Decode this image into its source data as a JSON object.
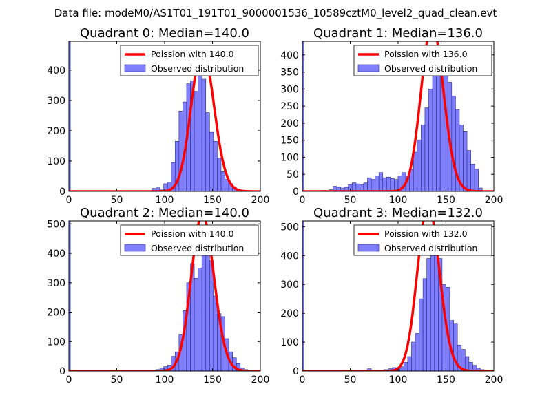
{
  "figure": {
    "suptitle": "Data file: modeM0/AS1T01_191T01_9000001536_10589cztM0_level2_quad_clean.evt"
  },
  "colors": {
    "bar_fill": "#7f7fff",
    "bar_edge": "#2b2b80",
    "poisson": "#ff0000",
    "axes": "#000000"
  },
  "chart_data": [
    {
      "type": "bar",
      "title": "Quadrant 0: Median=140.0",
      "median": 140.0,
      "xlim": [
        0,
        200
      ],
      "ylim": [
        0,
        495
      ],
      "xticks": [
        0,
        50,
        100,
        150,
        200
      ],
      "yticks": [
        0,
        100,
        200,
        300,
        400
      ],
      "legend": [
        "Poission with 140.0",
        "Observed distribution"
      ],
      "legend_position": "top-right",
      "overflow_bins": [
        {
          "x0": 0,
          "x1": 1.5,
          "value": 495
        }
      ],
      "bin_width": 3.98,
      "bin_starts": [
        87,
        91,
        95,
        99,
        103,
        107,
        111,
        115,
        119,
        123,
        127,
        131,
        135,
        139,
        143,
        147,
        151,
        155,
        159,
        163,
        167,
        171,
        175,
        179,
        183
      ],
      "values": [
        10,
        12,
        5,
        25,
        30,
        95,
        165,
        265,
        295,
        355,
        365,
        330,
        385,
        370,
        260,
        195,
        165,
        110,
        65,
        40,
        25,
        15,
        8,
        4,
        2
      ]
    },
    {
      "type": "bar",
      "title": "Quadrant 1: Median=136.0",
      "median": 136.0,
      "xlim": [
        0,
        200
      ],
      "ylim": [
        0,
        440
      ],
      "xticks": [
        0,
        50,
        100,
        150,
        200
      ],
      "yticks": [
        0,
        50,
        100,
        150,
        200,
        250,
        300,
        350,
        400
      ],
      "legend": [
        "Poission with 136.0",
        "Observed distribution"
      ],
      "legend_position": "top-right",
      "overflow_bins": [
        {
          "x0": 0,
          "x1": 1.5,
          "value": 440
        }
      ],
      "bin_width": 3.98,
      "bin_starts": [
        20,
        24,
        28,
        32,
        36,
        40,
        44,
        48,
        52,
        56,
        60,
        64,
        68,
        72,
        76,
        80,
        84,
        88,
        92,
        96,
        100,
        104,
        108,
        112,
        116,
        120,
        124,
        128,
        132,
        136,
        140,
        144,
        148,
        152,
        156,
        160,
        164,
        168,
        172,
        176,
        180,
        184
      ],
      "values": [
        3,
        2,
        5,
        15,
        12,
        10,
        12,
        20,
        25,
        22,
        20,
        25,
        40,
        35,
        45,
        55,
        40,
        42,
        38,
        35,
        45,
        55,
        45,
        65,
        115,
        150,
        195,
        245,
        300,
        340,
        390,
        400,
        345,
        320,
        280,
        240,
        195,
        175,
        120,
        80,
        65,
        10
      ]
    },
    {
      "type": "bar",
      "title": "Quadrant 2: Median=140.0",
      "median": 140.0,
      "xlim": [
        0,
        200
      ],
      "ylim": [
        0,
        510
      ],
      "xticks": [
        0,
        50,
        100,
        150,
        200
      ],
      "yticks": [
        0,
        100,
        200,
        300,
        400,
        500
      ],
      "legend": [
        "Poission with 140.0",
        "Observed distribution"
      ],
      "legend_position": "top-right",
      "overflow_bins": [
        {
          "x0": 0,
          "x1": 1.5,
          "value": 510
        }
      ],
      "bin_width": 3.98,
      "bin_starts": [
        91,
        95,
        99,
        103,
        107,
        111,
        115,
        119,
        123,
        127,
        131,
        135,
        139,
        143,
        147,
        151,
        155,
        159,
        163,
        167,
        171,
        175,
        179,
        183
      ],
      "values": [
        5,
        10,
        15,
        20,
        50,
        65,
        125,
        205,
        300,
        365,
        315,
        350,
        410,
        435,
        375,
        255,
        195,
        185,
        110,
        65,
        45,
        25,
        10,
        5
      ]
    },
    {
      "type": "bar",
      "title": "Quadrant 3: Median=132.0",
      "median": 132.0,
      "xlim": [
        0,
        200
      ],
      "ylim": [
        0,
        520
      ],
      "xticks": [
        0,
        50,
        100,
        150,
        200
      ],
      "yticks": [
        0,
        100,
        200,
        300,
        400,
        500
      ],
      "legend": [
        "Poission with 132.0",
        "Observed distribution"
      ],
      "legend_position": "top-right",
      "overflow_bins": [
        {
          "x0": 0,
          "x1": 1.5,
          "value": 520
        }
      ],
      "bin_width": 3.98,
      "bin_starts": [
        68,
        85,
        90,
        94,
        98,
        102,
        106,
        110,
        114,
        118,
        122,
        126,
        130,
        134,
        138,
        142,
        146,
        150,
        154,
        158,
        162,
        166,
        170,
        174,
        178,
        182,
        186,
        190
      ],
      "values": [
        8,
        5,
        8,
        12,
        10,
        15,
        30,
        50,
        100,
        130,
        250,
        320,
        390,
        440,
        470,
        390,
        300,
        290,
        175,
        165,
        90,
        75,
        50,
        30,
        20,
        10,
        5,
        3
      ]
    }
  ]
}
